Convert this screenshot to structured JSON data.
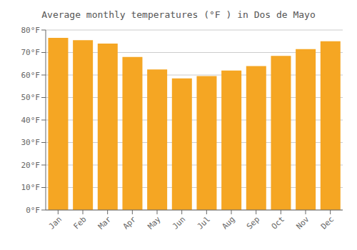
{
  "chart_data": {
    "type": "bar",
    "title": "Average monthly temperatures (°F ) in Dos de Mayo",
    "categories": [
      "Jan",
      "Feb",
      "Mar",
      "Apr",
      "May",
      "Jun",
      "Jul",
      "Aug",
      "Sep",
      "Oct",
      "Nov",
      "Dec"
    ],
    "values": [
      76.5,
      75.5,
      74.0,
      68.0,
      62.5,
      58.5,
      59.5,
      62.0,
      64.0,
      68.5,
      71.5,
      75.0
    ],
    "color": "#F5A623",
    "ylim": [
      0,
      80
    ],
    "yticks": [
      {
        "value": 0,
        "label": "0°F"
      },
      {
        "value": 10,
        "label": "10°F"
      },
      {
        "value": 20,
        "label": "20°F"
      },
      {
        "value": 30,
        "label": "30°F"
      },
      {
        "value": 40,
        "label": "40°F"
      },
      {
        "value": 50,
        "label": "50°F"
      },
      {
        "value": 60,
        "label": "60°F"
      },
      {
        "value": 70,
        "label": "70°F"
      },
      {
        "value": 80,
        "label": "80°F"
      }
    ],
    "grid": true
  }
}
